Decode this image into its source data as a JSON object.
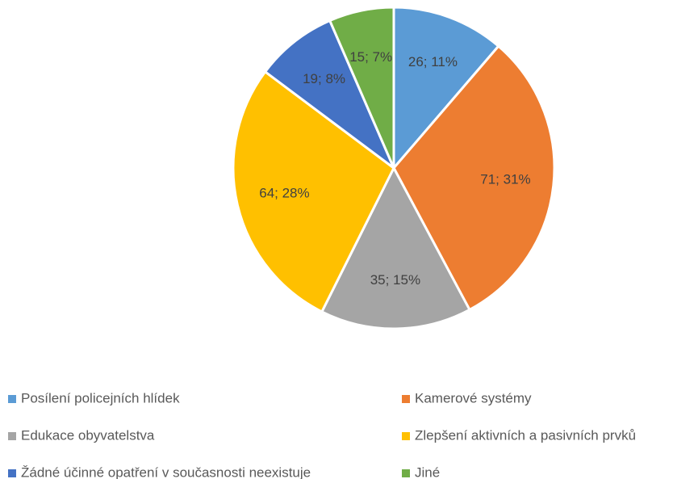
{
  "chart_data": {
    "type": "pie",
    "categories": [
      "Posílení policejních hlídek",
      "Kamerové systémy",
      "Edukace obyvatelstva",
      "Zlepšení aktivních a pasivních prvků",
      "Žádné účinné opatření v současnosti neexistuje",
      "Jiné"
    ],
    "values": [
      26,
      71,
      35,
      64,
      19,
      15
    ],
    "value_labels": [
      "26; 11%",
      "71; 31%",
      "35; 15%",
      "64; 28%",
      "19; 8%",
      "15; 7%"
    ],
    "colors": [
      "#5b9bd5",
      "#ed7d31",
      "#a5a5a5",
      "#ffc000",
      "#4472c4",
      "#70ad47"
    ],
    "legend": "bottom"
  }
}
